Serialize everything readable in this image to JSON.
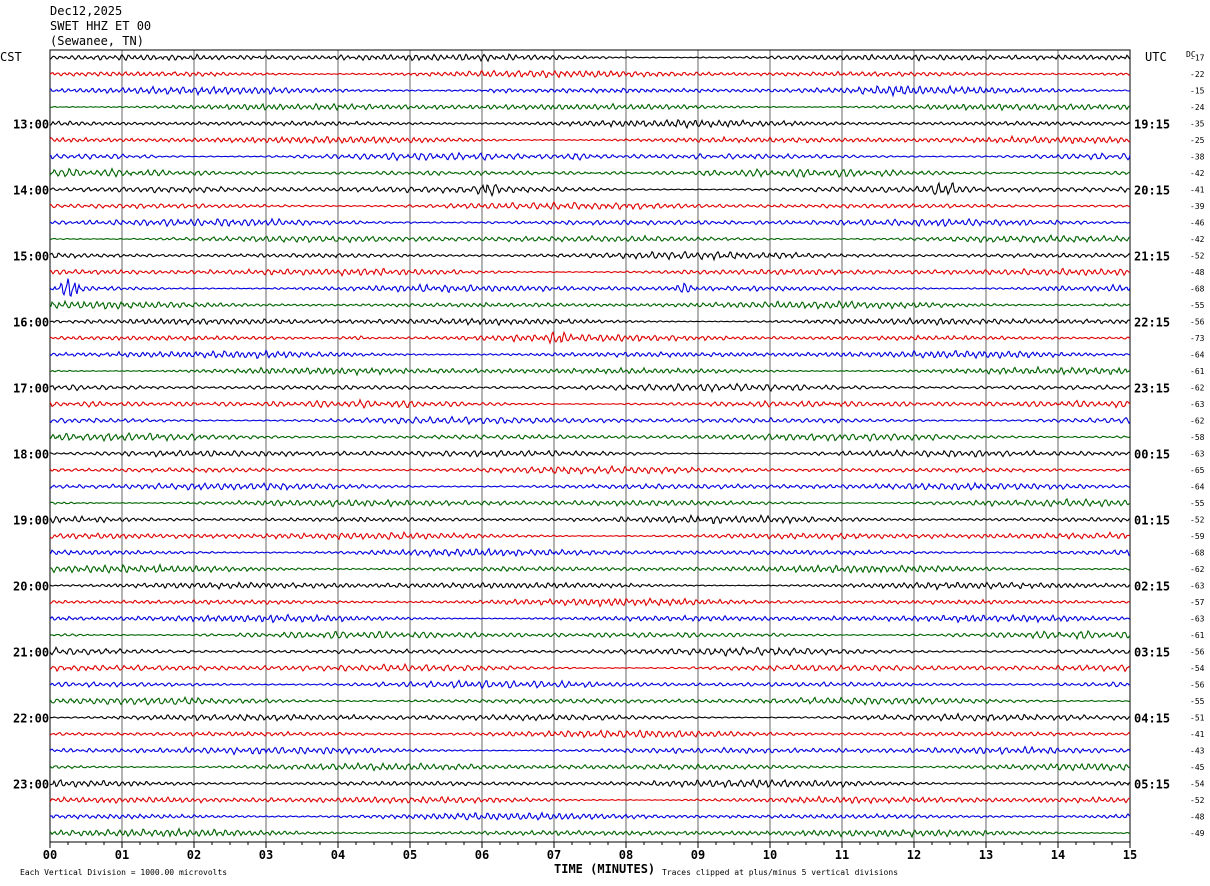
{
  "header": {
    "date": "Dec12,2025",
    "station": "SWET HHZ ET 00",
    "location": "(Sewanee, TN)"
  },
  "left_zone": "CST",
  "right_zone": "UTC",
  "dc_label": "DC",
  "footer": {
    "scale_note": "Each Vertical Division = 1000.00 microvolts",
    "clip_note": "Traces clipped at plus/minus 5 vertical divisions"
  },
  "colors": {
    "trace_cycle": [
      "#000000",
      "#e00000",
      "#0000e0",
      "#006400"
    ],
    "grid": "#000000"
  },
  "chart_data": {
    "type": "line",
    "title": "",
    "xlabel": "TIME (MINUTES)",
    "xlim": [
      0,
      15
    ],
    "x_ticks": [
      "00",
      "01",
      "02",
      "03",
      "04",
      "05",
      "06",
      "07",
      "08",
      "09",
      "10",
      "11",
      "12",
      "13",
      "14",
      "15"
    ],
    "rows": 48,
    "row_minutes": 15,
    "left_time_labels": [
      {
        "row": 4,
        "label": "13:00"
      },
      {
        "row": 8,
        "label": "14:00"
      },
      {
        "row": 12,
        "label": "15:00"
      },
      {
        "row": 16,
        "label": "16:00"
      },
      {
        "row": 20,
        "label": "17:00"
      },
      {
        "row": 24,
        "label": "18:00"
      },
      {
        "row": 28,
        "label": "19:00"
      },
      {
        "row": 32,
        "label": "20:00"
      },
      {
        "row": 36,
        "label": "21:00"
      },
      {
        "row": 40,
        "label": "22:00"
      },
      {
        "row": 44,
        "label": "23:00"
      }
    ],
    "right_time_labels": [
      {
        "row": 4,
        "label": "19:15"
      },
      {
        "row": 8,
        "label": "20:15"
      },
      {
        "row": 12,
        "label": "21:15"
      },
      {
        "row": 16,
        "label": "22:15"
      },
      {
        "row": 20,
        "label": "23:15"
      },
      {
        "row": 24,
        "label": "00:15"
      },
      {
        "row": 28,
        "label": "01:15"
      },
      {
        "row": 32,
        "label": "02:15"
      },
      {
        "row": 36,
        "label": "03:15"
      },
      {
        "row": 40,
        "label": "04:15"
      },
      {
        "row": 44,
        "label": "05:15"
      }
    ],
    "dc_offsets": [
      "-17",
      "-22",
      "-15",
      "-24",
      "-35",
      "-25",
      "-38",
      "-42",
      "-41",
      "-39",
      "-46",
      "-42",
      "-52",
      "-48",
      "-68",
      "-55",
      "-56",
      "-73",
      "-64",
      "-61",
      "-62",
      "-63",
      "-62",
      "-58",
      "-63",
      "-65",
      "-64",
      "-55",
      "-52",
      "-59",
      "-68",
      "-62",
      "-63",
      "-57",
      "-63",
      "-61",
      "-56",
      "-54",
      "-56",
      "-55",
      "-51",
      "-41",
      "-43",
      "-45",
      "-54",
      "-52",
      "-48",
      "-49"
    ],
    "events": [
      {
        "row": 2,
        "minute": 6.0,
        "duration": 0.5,
        "amp": 1.6
      },
      {
        "row": 2,
        "minute": 11.2,
        "duration": 1.0,
        "amp": 1.5
      },
      {
        "row": 6,
        "minute": 0.2,
        "duration": 1.8,
        "amp": 1.6
      },
      {
        "row": 6,
        "minute": 7.0,
        "duration": 0.7,
        "amp": 1.8
      },
      {
        "row": 8,
        "minute": 5.9,
        "duration": 0.4,
        "amp": 2.4
      },
      {
        "row": 8,
        "minute": 12.1,
        "duration": 0.7,
        "amp": 2.4
      },
      {
        "row": 14,
        "minute": 0.1,
        "duration": 0.4,
        "amp": 4.0
      },
      {
        "row": 14,
        "minute": 8.6,
        "duration": 0.4,
        "amp": 2.5
      },
      {
        "row": 14,
        "minute": 13.8,
        "duration": 0.3,
        "amp": 2.0
      },
      {
        "row": 17,
        "minute": 4.0,
        "duration": 0.5,
        "amp": 2.8
      },
      {
        "row": 17,
        "minute": 6.9,
        "duration": 0.3,
        "amp": 2.0
      }
    ]
  }
}
